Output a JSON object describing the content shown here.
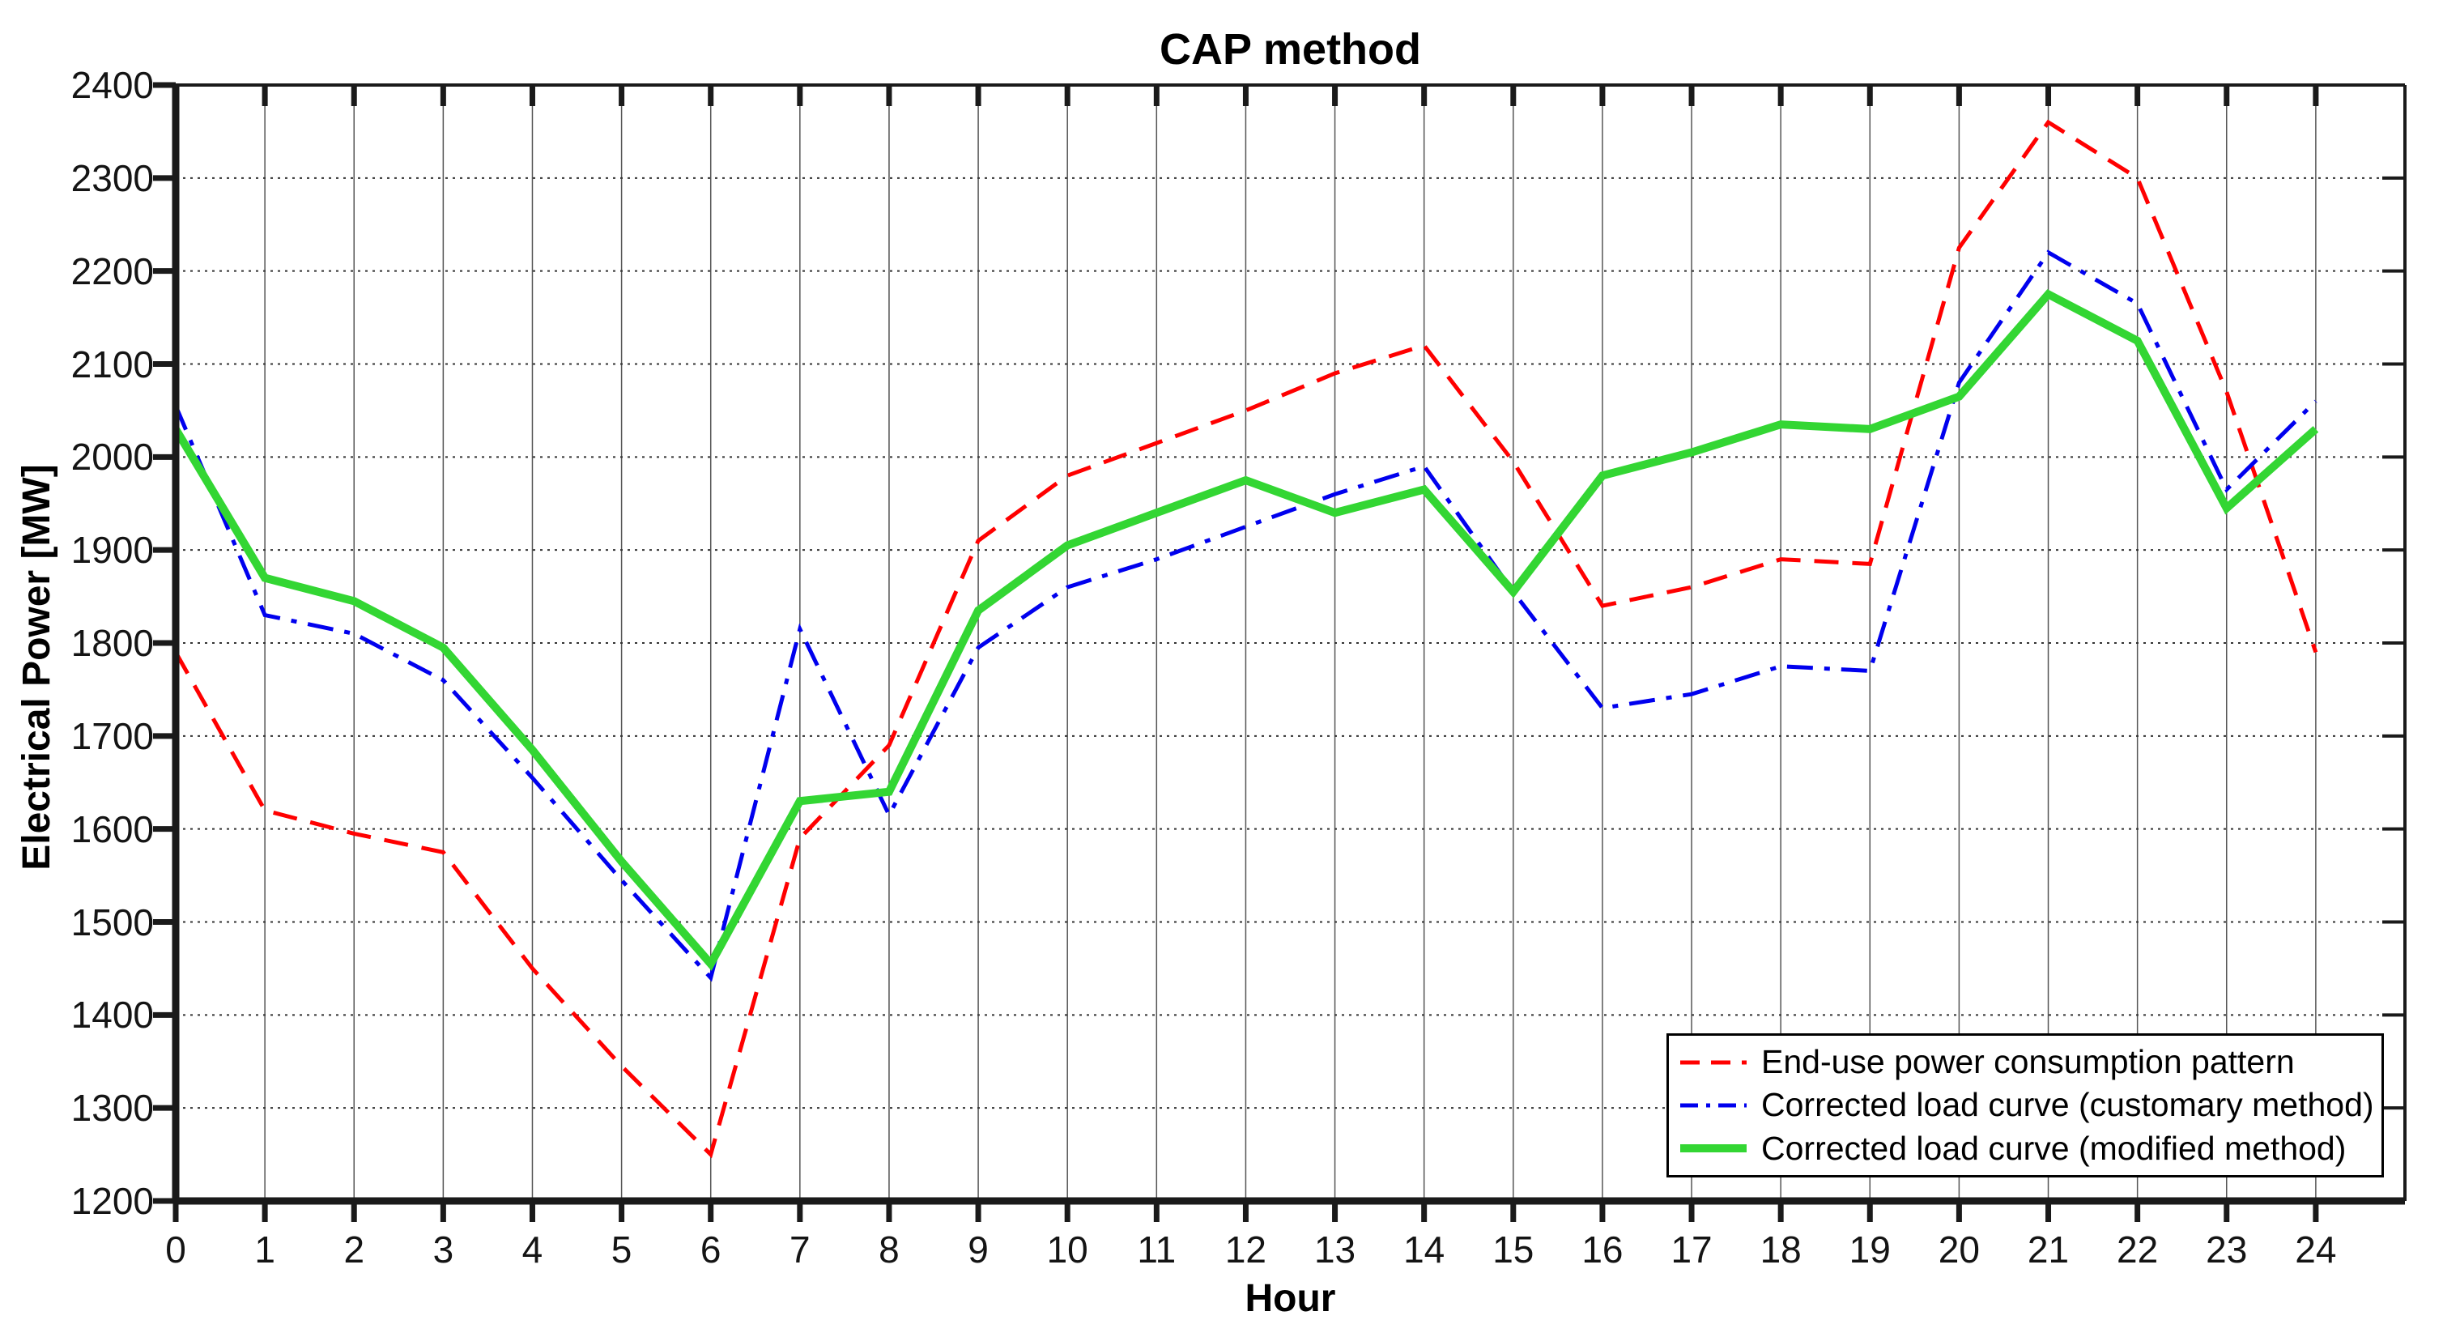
{
  "title": "CAP method",
  "axes": {
    "xlabel": "Hour",
    "ylabel": "Electrical Power [MW]"
  },
  "chart_data": {
    "type": "line",
    "title": "CAP method",
    "xlabel": "Hour",
    "ylabel": "Electrical Power [MW]",
    "xlim": [
      0,
      25
    ],
    "ylim": [
      1200,
      2400
    ],
    "xticks": [
      0,
      1,
      2,
      3,
      4,
      5,
      6,
      7,
      8,
      9,
      10,
      11,
      12,
      13,
      14,
      15,
      16,
      17,
      18,
      19,
      20,
      21,
      22,
      23,
      24
    ],
    "yticks": [
      1200,
      1300,
      1400,
      1500,
      1600,
      1700,
      1800,
      1900,
      2000,
      2100,
      2200,
      2300,
      2400
    ],
    "grid": true,
    "legend_position": "lower right",
    "x": [
      0,
      1,
      2,
      3,
      4,
      5,
      6,
      7,
      8,
      9,
      10,
      11,
      12,
      13,
      14,
      15,
      16,
      17,
      18,
      19,
      20,
      21,
      22,
      23,
      24
    ],
    "series": [
      {
        "name": "End-use power consumption pattern",
        "color": "#ff0000",
        "style": "dashed",
        "width": 5,
        "values": [
          1790,
          1620,
          1595,
          1575,
          1450,
          1345,
          1250,
          1590,
          1690,
          1910,
          1980,
          2015,
          2050,
          2090,
          2120,
          1995,
          1840,
          1860,
          1890,
          1885,
          2225,
          2360,
          2300,
          2070,
          1790
        ]
      },
      {
        "name": "Corrected load curve (customary method)",
        "color": "#0000ee",
        "style": "dashdot",
        "width": 5,
        "values": [
          2055,
          1830,
          1810,
          1760,
          1655,
          1545,
          1440,
          1815,
          1615,
          1795,
          1860,
          1890,
          1925,
          1960,
          1990,
          1855,
          1730,
          1745,
          1775,
          1770,
          2080,
          2220,
          2165,
          1965,
          2060
        ]
      },
      {
        "name": "Corrected load curve (modified method)",
        "color": "#33d633",
        "style": "solid",
        "width": 10,
        "values": [
          2030,
          1870,
          1845,
          1795,
          1685,
          1565,
          1455,
          1630,
          1640,
          1835,
          1905,
          1940,
          1975,
          1940,
          1965,
          1855,
          1980,
          2005,
          2035,
          2030,
          2065,
          2175,
          2125,
          1945,
          2030
        ]
      }
    ]
  }
}
